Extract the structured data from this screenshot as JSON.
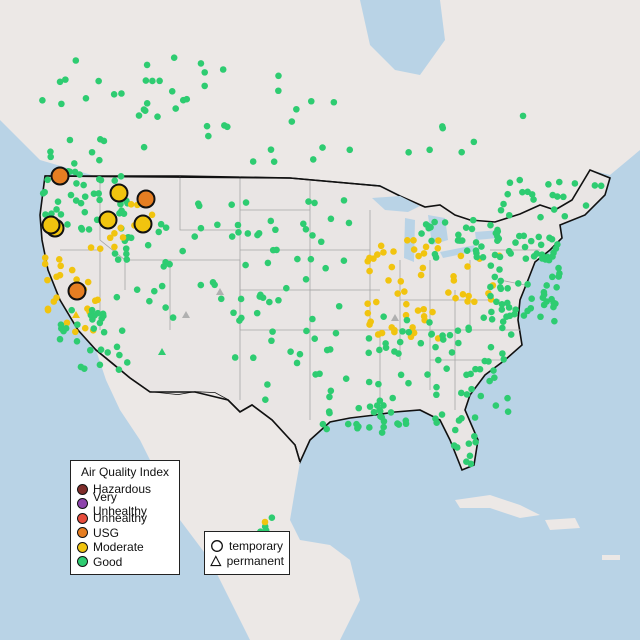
{
  "legend": {
    "title": "Air Quality Index",
    "categories": [
      {
        "label": "Hazardous",
        "color": "#7e2d2a"
      },
      {
        "label": "Very Unhealthy",
        "color": "#8e44ad"
      },
      {
        "label": "Unhealthy",
        "color": "#e74c3c"
      },
      {
        "label": "USG",
        "color": "#e67e22"
      },
      {
        "label": "Moderate",
        "color": "#f1c40f"
      },
      {
        "label": "Good",
        "color": "#2ecc71"
      }
    ]
  },
  "type_legend": {
    "temporary_label": "temporary",
    "permanent_label": "permanent"
  },
  "colors": {
    "water": "#b9d3e6",
    "land": "#ece8e6",
    "us_land": "#e9e5e4",
    "border": "#111111",
    "state_line": "#a6a6a6",
    "no_data": "#b0b0b0"
  }
}
